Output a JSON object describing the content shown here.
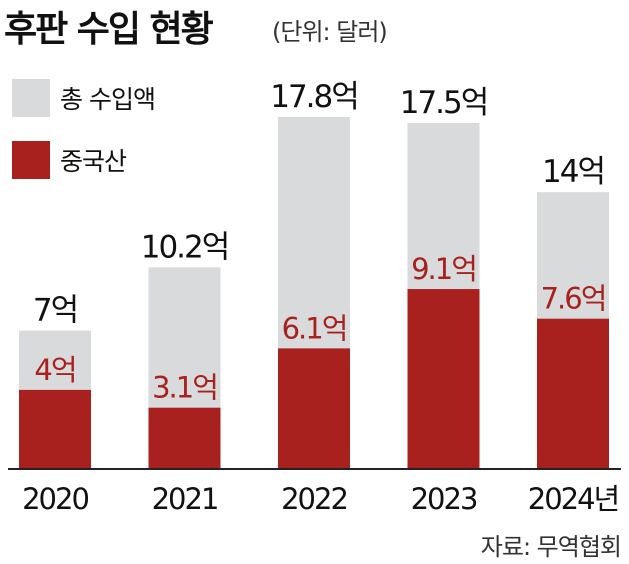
{
  "title": "후판 수입 현황",
  "unit": "(단위: 달러)",
  "source": "자료: 무역협회",
  "colors": {
    "total": "#d9dadc",
    "china": "#a8211e",
    "china_label": "#f2c8c4",
    "text": "#111111",
    "axis": "#222222"
  },
  "chart_data": {
    "type": "bar",
    "categories": [
      "2020",
      "2021",
      "2022",
      "2023",
      "2024년"
    ],
    "series": [
      {
        "name": "총 수입액",
        "values": [
          7,
          10.2,
          17.8,
          17.5,
          14
        ],
        "labels": [
          "7억",
          "10.2억",
          "17.8억",
          "17.5억",
          "14억"
        ]
      },
      {
        "name": "중국산",
        "values": [
          4,
          3.1,
          6.1,
          9.1,
          7.6
        ],
        "labels": [
          "4억",
          "3.1억",
          "6.1억",
          "9.1억",
          "7.6억"
        ]
      }
    ],
    "ylim": [
      0,
      17.8
    ],
    "grid": false,
    "legend": "top-left"
  }
}
